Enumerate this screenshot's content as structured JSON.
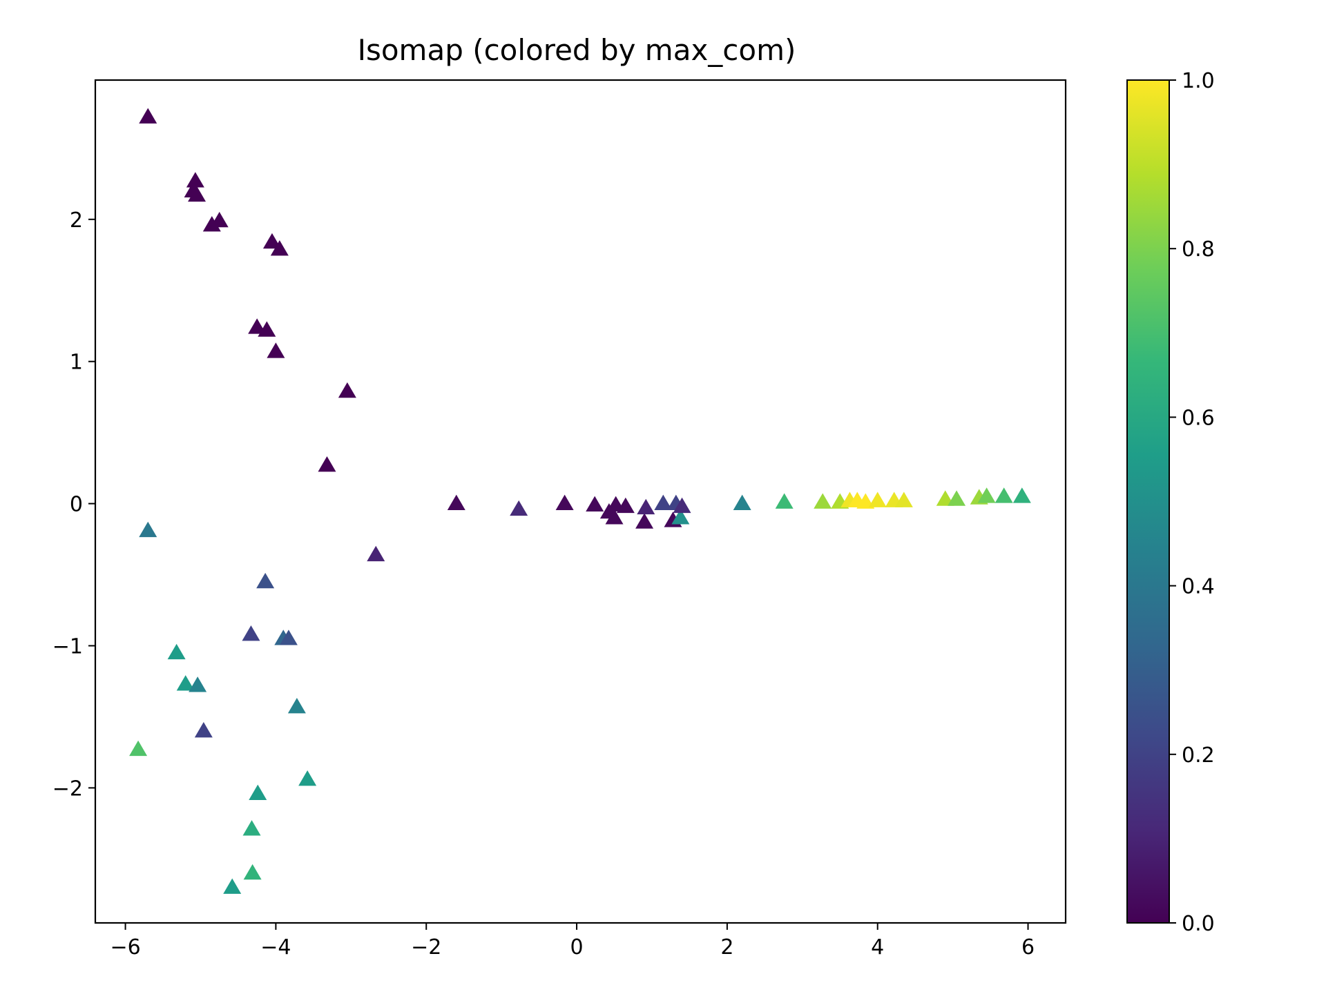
{
  "chart_data": {
    "type": "scatter",
    "title": "Isomap (colored by max_com)",
    "xlabel": "",
    "ylabel": "",
    "xlim": [
      -6.4,
      6.5
    ],
    "ylim": [
      -2.95,
      2.98
    ],
    "x_ticks": [
      -6,
      -4,
      -2,
      0,
      2,
      4,
      6
    ],
    "x_tick_labels": [
      "−6",
      "−4",
      "−2",
      "0",
      "2",
      "4",
      "6"
    ],
    "y_ticks": [
      -2,
      -1,
      0,
      1,
      2
    ],
    "y_tick_labels": [
      "−2",
      "−1",
      "0",
      "1",
      "2"
    ],
    "grid": false,
    "marker": "triangle-up",
    "colormap": "viridis",
    "colorbar": {
      "range": [
        0.0,
        1.0
      ],
      "ticks": [
        0.0,
        0.2,
        0.4,
        0.6,
        0.8,
        1.0
      ],
      "tick_labels": [
        "0.0",
        "0.2",
        "0.4",
        "0.6",
        "0.8",
        "1.0"
      ],
      "stops": [
        "#440154",
        "#482878",
        "#3e4989",
        "#31688e",
        "#26828e",
        "#1f9e89",
        "#35b779",
        "#6ece58",
        "#b5de2b",
        "#fde725"
      ]
    },
    "points": [
      {
        "x": -5.7,
        "y": 2.72,
        "c": 0.0
      },
      {
        "x": -5.07,
        "y": 2.27,
        "c": 0.0
      },
      {
        "x": -5.1,
        "y": 2.2,
        "c": 0.0
      },
      {
        "x": -5.05,
        "y": 2.17,
        "c": 0.0
      },
      {
        "x": -4.75,
        "y": 1.99,
        "c": 0.0
      },
      {
        "x": -4.85,
        "y": 1.96,
        "c": 0.0
      },
      {
        "x": -4.05,
        "y": 1.84,
        "c": 0.0
      },
      {
        "x": -3.95,
        "y": 1.79,
        "c": 0.0
      },
      {
        "x": -4.25,
        "y": 1.24,
        "c": 0.0
      },
      {
        "x": -4.12,
        "y": 1.22,
        "c": 0.0
      },
      {
        "x": -4.0,
        "y": 1.07,
        "c": 0.0
      },
      {
        "x": -3.05,
        "y": 0.79,
        "c": 0.0
      },
      {
        "x": -3.32,
        "y": 0.27,
        "c": 0.0
      },
      {
        "x": -2.67,
        "y": -0.36,
        "c": 0.1
      },
      {
        "x": -1.6,
        "y": 0.0,
        "c": 0.02
      },
      {
        "x": -0.77,
        "y": -0.04,
        "c": 0.12
      },
      {
        "x": -0.16,
        "y": 0.0,
        "c": 0.02
      },
      {
        "x": 0.24,
        "y": -0.01,
        "c": 0.02
      },
      {
        "x": 0.43,
        "y": -0.06,
        "c": 0.02
      },
      {
        "x": 0.5,
        "y": -0.1,
        "c": 0.02
      },
      {
        "x": 0.52,
        "y": -0.01,
        "c": 0.02
      },
      {
        "x": 0.65,
        "y": -0.02,
        "c": 0.02
      },
      {
        "x": 0.9,
        "y": -0.13,
        "c": 0.02
      },
      {
        "x": 0.92,
        "y": -0.03,
        "c": 0.1
      },
      {
        "x": 1.28,
        "y": -0.12,
        "c": 0.02
      },
      {
        "x": 1.38,
        "y": -0.1,
        "c": 0.5
      },
      {
        "x": 1.15,
        "y": 0.0,
        "c": 0.2
      },
      {
        "x": 1.32,
        "y": 0.0,
        "c": 0.2
      },
      {
        "x": 1.4,
        "y": -0.02,
        "c": 0.12
      },
      {
        "x": 2.2,
        "y": 0.0,
        "c": 0.45
      },
      {
        "x": 2.76,
        "y": 0.01,
        "c": 0.68
      },
      {
        "x": 3.27,
        "y": 0.01,
        "c": 0.85
      },
      {
        "x": 3.5,
        "y": 0.01,
        "c": 0.88
      },
      {
        "x": 3.63,
        "y": 0.02,
        "c": 0.98
      },
      {
        "x": 3.73,
        "y": 0.02,
        "c": 1.0
      },
      {
        "x": 3.84,
        "y": 0.01,
        "c": 1.0
      },
      {
        "x": 4.0,
        "y": 0.02,
        "c": 0.98
      },
      {
        "x": 4.22,
        "y": 0.02,
        "c": 0.97
      },
      {
        "x": 4.35,
        "y": 0.02,
        "c": 0.96
      },
      {
        "x": 4.9,
        "y": 0.03,
        "c": 0.88
      },
      {
        "x": 5.05,
        "y": 0.03,
        "c": 0.8
      },
      {
        "x": 5.35,
        "y": 0.04,
        "c": 0.85
      },
      {
        "x": 5.45,
        "y": 0.05,
        "c": 0.78
      },
      {
        "x": 5.68,
        "y": 0.05,
        "c": 0.7
      },
      {
        "x": 5.92,
        "y": 0.05,
        "c": 0.64
      },
      {
        "x": -5.7,
        "y": -0.19,
        "c": 0.4
      },
      {
        "x": -4.14,
        "y": -0.55,
        "c": 0.25
      },
      {
        "x": -4.33,
        "y": -0.92,
        "c": 0.2
      },
      {
        "x": -3.9,
        "y": -0.95,
        "c": 0.33
      },
      {
        "x": -3.83,
        "y": -0.95,
        "c": 0.25
      },
      {
        "x": -5.32,
        "y": -1.05,
        "c": 0.55
      },
      {
        "x": -5.2,
        "y": -1.27,
        "c": 0.55
      },
      {
        "x": -5.04,
        "y": -1.28,
        "c": 0.45
      },
      {
        "x": -4.96,
        "y": -1.6,
        "c": 0.2
      },
      {
        "x": -3.72,
        "y": -1.43,
        "c": 0.45
      },
      {
        "x": -3.58,
        "y": -1.94,
        "c": 0.55
      },
      {
        "x": -5.83,
        "y": -1.73,
        "c": 0.72
      },
      {
        "x": -4.24,
        "y": -2.04,
        "c": 0.55
      },
      {
        "x": -4.32,
        "y": -2.29,
        "c": 0.62
      },
      {
        "x": -4.31,
        "y": -2.6,
        "c": 0.65
      },
      {
        "x": -4.58,
        "y": -2.7,
        "c": 0.55
      }
    ]
  }
}
